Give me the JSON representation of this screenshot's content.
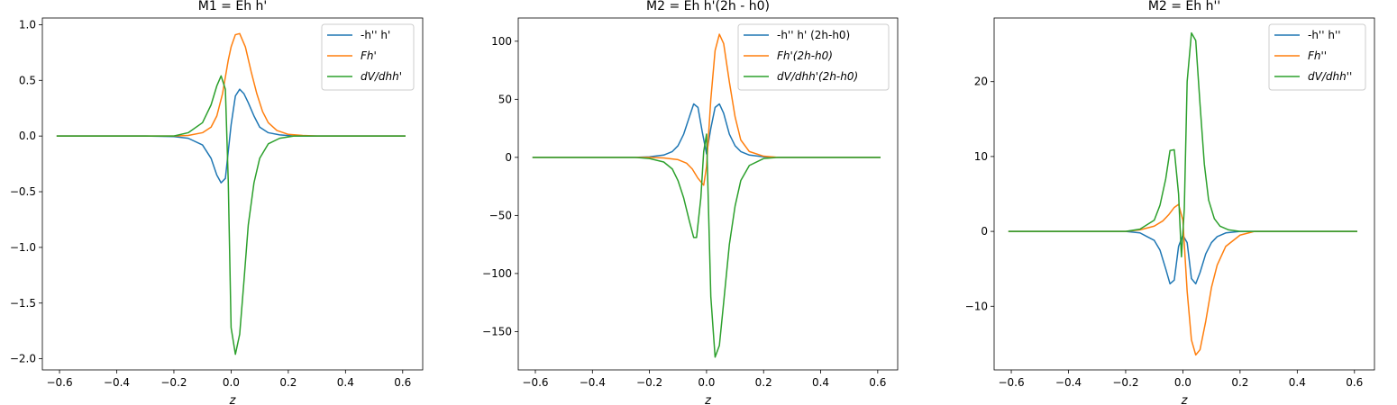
{
  "chart_data": [
    {
      "type": "line",
      "title": "M1 = Eh h'",
      "xlabel": "z",
      "ylabel": "",
      "xlim": [
        -0.66,
        0.67
      ],
      "ylim": [
        -2.1,
        1.06
      ],
      "xticks": [
        -0.6,
        -0.4,
        -0.2,
        0.0,
        0.2,
        0.4,
        0.6
      ],
      "xtick_labels": [
        "−0.6",
        "−0.4",
        "−0.2",
        "0.0",
        "0.2",
        "0.4",
        "0.6"
      ],
      "yticks": [
        -2.0,
        -1.5,
        -1.0,
        -0.5,
        0.0,
        0.5,
        1.0
      ],
      "ytick_labels": [
        "−2.0",
        "−1.5",
        "−1.0",
        "−0.5",
        "0.0",
        "0.5",
        "1.0"
      ],
      "legend_position": "top-right",
      "series": [
        {
          "name": "-h'' h'",
          "color": "#1f77b4",
          "x": [
            -0.61,
            -0.3,
            -0.2,
            -0.15,
            -0.1,
            -0.07,
            -0.05,
            -0.035,
            -0.02,
            0.0,
            0.015,
            0.03,
            0.045,
            0.06,
            0.08,
            0.1,
            0.13,
            0.17,
            0.22,
            0.3,
            0.61
          ],
          "y": [
            0.0,
            0.0,
            -0.005,
            -0.02,
            -0.08,
            -0.2,
            -0.35,
            -0.42,
            -0.38,
            0.1,
            0.36,
            0.42,
            0.38,
            0.3,
            0.18,
            0.08,
            0.03,
            0.01,
            0.0,
            0.0,
            0.0
          ]
        },
        {
          "name": "Fh'",
          "color": "#ff7f0e",
          "x": [
            -0.61,
            -0.2,
            -0.15,
            -0.1,
            -0.07,
            -0.05,
            -0.03,
            -0.01,
            0.0,
            0.015,
            0.03,
            0.05,
            0.07,
            0.09,
            0.11,
            0.13,
            0.16,
            0.2,
            0.25,
            0.3,
            0.61
          ],
          "y": [
            0.0,
            0.0,
            0.005,
            0.03,
            0.08,
            0.18,
            0.38,
            0.68,
            0.8,
            0.91,
            0.92,
            0.8,
            0.58,
            0.38,
            0.22,
            0.12,
            0.05,
            0.015,
            0.005,
            0.0,
            0.0
          ]
        },
        {
          "name": "dV/dhh'",
          "color": "#2ca02c",
          "x": [
            -0.61,
            -0.2,
            -0.15,
            -0.1,
            -0.07,
            -0.05,
            -0.035,
            -0.02,
            -0.01,
            0.0,
            0.015,
            0.03,
            0.045,
            0.06,
            0.08,
            0.1,
            0.13,
            0.17,
            0.22,
            0.3,
            0.61
          ],
          "y": [
            0.0,
            0.0,
            0.03,
            0.12,
            0.28,
            0.45,
            0.54,
            0.42,
            -0.4,
            -1.72,
            -1.96,
            -1.78,
            -1.3,
            -0.8,
            -0.42,
            -0.2,
            -0.07,
            -0.02,
            0.0,
            0.0,
            0.0
          ]
        }
      ]
    },
    {
      "type": "line",
      "title": "M2 = Eh h'(2h - h0)",
      "xlabel": "z",
      "ylabel": "",
      "xlim": [
        -0.66,
        0.67
      ],
      "ylim": [
        -183,
        120
      ],
      "xticks": [
        -0.6,
        -0.4,
        -0.2,
        0.0,
        0.2,
        0.4,
        0.6
      ],
      "xtick_labels": [
        "−0.6",
        "−0.4",
        "−0.2",
        "0.0",
        "0.2",
        "0.4",
        "0.6"
      ],
      "yticks": [
        -150,
        -100,
        -50,
        0,
        50,
        100
      ],
      "ytick_labels": [
        "−150",
        "−100",
        "−50",
        "0",
        "50",
        "100"
      ],
      "legend_position": "top-right",
      "series": [
        {
          "name": "-h'' h' (2h-h0)",
          "color": "#1f77b4",
          "x": [
            -0.61,
            -0.25,
            -0.2,
            -0.15,
            -0.12,
            -0.1,
            -0.08,
            -0.06,
            -0.045,
            -0.03,
            -0.015,
            0.0,
            0.015,
            0.03,
            0.045,
            0.06,
            0.08,
            0.1,
            0.12,
            0.15,
            0.2,
            0.25,
            0.61
          ],
          "y": [
            0.0,
            0.0,
            0.5,
            2,
            5,
            10,
            20,
            35,
            46,
            43,
            22,
            3,
            25,
            43,
            46,
            38,
            20,
            10,
            5,
            2,
            0.5,
            0.0,
            0.0
          ]
        },
        {
          "name": "Fh'(2h-h0)",
          "color": "#ff7f0e",
          "x": [
            -0.61,
            -0.2,
            -0.15,
            -0.1,
            -0.07,
            -0.05,
            -0.03,
            -0.01,
            0.0,
            0.015,
            0.03,
            0.045,
            0.06,
            0.08,
            0.1,
            0.12,
            0.15,
            0.2,
            0.25,
            0.61
          ],
          "y": [
            0.0,
            0.0,
            -0.5,
            -2,
            -5,
            -10,
            -18,
            -24,
            -8,
            50,
            92,
            106,
            98,
            65,
            35,
            15,
            5,
            1,
            0.0,
            0.0
          ]
        },
        {
          "name": "dV/dhh'(2h-h0)",
          "color": "#2ca02c",
          "x": [
            -0.61,
            -0.25,
            -0.2,
            -0.15,
            -0.12,
            -0.1,
            -0.08,
            -0.06,
            -0.045,
            -0.035,
            -0.02,
            -0.01,
            0.0,
            0.015,
            0.03,
            0.045,
            0.06,
            0.08,
            0.1,
            0.12,
            0.15,
            0.2,
            0.25,
            0.61
          ],
          "y": [
            0.0,
            0.0,
            -1,
            -4,
            -10,
            -20,
            -35,
            -55,
            -69,
            -69,
            -35,
            5,
            20,
            -120,
            -172,
            -162,
            -125,
            -75,
            -42,
            -20,
            -7,
            -1,
            0.0,
            0.0
          ]
        }
      ]
    },
    {
      "type": "line",
      "title": "M2 = Eh h''",
      "xlabel": "z",
      "ylabel": "",
      "xlim": [
        -0.66,
        0.67
      ],
      "ylim": [
        -18.5,
        28.5
      ],
      "xticks": [
        -0.6,
        -0.4,
        -0.2,
        0.0,
        0.2,
        0.4,
        0.6
      ],
      "xtick_labels": [
        "−0.6",
        "−0.4",
        "−0.2",
        "0.0",
        "0.2",
        "0.4",
        "0.6"
      ],
      "yticks": [
        -10,
        0,
        10,
        20
      ],
      "ytick_labels": [
        "−10",
        "0",
        "10",
        "20"
      ],
      "legend_position": "top-right",
      "series": [
        {
          "name": "-h'' h''",
          "color": "#1f77b4",
          "x": [
            -0.61,
            -0.2,
            -0.15,
            -0.1,
            -0.08,
            -0.06,
            -0.045,
            -0.03,
            -0.015,
            0.0,
            0.015,
            0.03,
            0.045,
            0.06,
            0.08,
            0.1,
            0.12,
            0.15,
            0.2,
            0.61
          ],
          "y": [
            0.0,
            0.0,
            -0.2,
            -1.2,
            -2.5,
            -5,
            -7,
            -6.5,
            -2,
            -0.5,
            -1.5,
            -6.3,
            -7,
            -5.5,
            -3,
            -1.5,
            -0.7,
            -0.2,
            0.0,
            0.0
          ]
        },
        {
          "name": "Fh''",
          "color": "#ff7f0e",
          "x": [
            -0.61,
            -0.2,
            -0.15,
            -0.1,
            -0.07,
            -0.05,
            -0.03,
            -0.015,
            0.0,
            0.015,
            0.03,
            0.045,
            0.06,
            0.08,
            0.1,
            0.12,
            0.15,
            0.2,
            0.25,
            0.61
          ],
          "y": [
            0.0,
            0.0,
            0.2,
            0.7,
            1.4,
            2.2,
            3.2,
            3.6,
            1.5,
            -8,
            -14.5,
            -16.5,
            -15.8,
            -12,
            -7.5,
            -4.5,
            -2,
            -0.5,
            0.0,
            0.0
          ]
        },
        {
          "name": "dV/dhh''",
          "color": "#2ca02c",
          "x": [
            -0.61,
            -0.2,
            -0.15,
            -0.1,
            -0.08,
            -0.06,
            -0.045,
            -0.03,
            -0.015,
            -0.005,
            0.005,
            0.015,
            0.03,
            0.045,
            0.06,
            0.075,
            0.09,
            0.11,
            0.13,
            0.16,
            0.2,
            0.61
          ],
          "y": [
            0.0,
            0.0,
            0.3,
            1.5,
            3.5,
            7,
            10.8,
            10.9,
            5,
            -3.4,
            3,
            20,
            26.5,
            25.5,
            17,
            9,
            4.2,
            1.7,
            0.7,
            0.2,
            0.0,
            0.0
          ]
        }
      ]
    }
  ]
}
